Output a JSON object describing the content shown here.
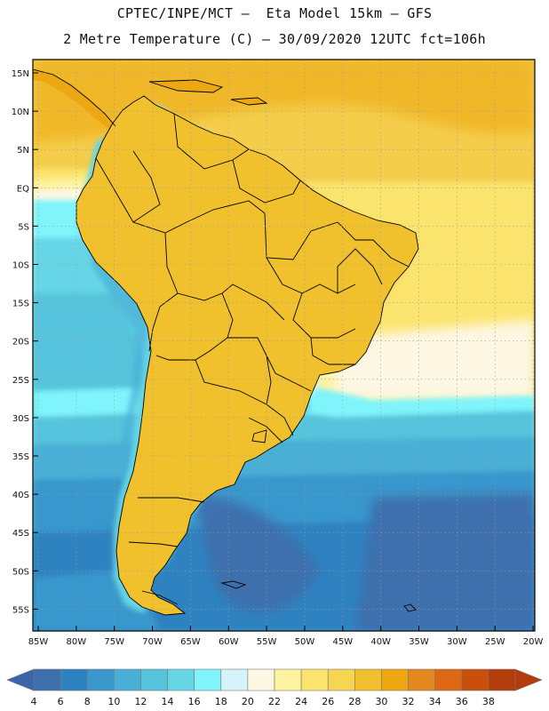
{
  "header": {
    "line1": "CPTEC/INPE/MCT –  Eta Model 15km – GFS",
    "line2": "2 Metre Temperature (C) – 30/09/2020 12UTC fct=106h"
  },
  "map": {
    "region": "South America",
    "lon_range": [
      -86,
      -20
    ],
    "lat_range": [
      -58,
      17
    ],
    "lat_ticks": [
      "15N",
      "10N",
      "5N",
      "EQ",
      "5S",
      "10S",
      "15S",
      "20S",
      "25S",
      "30S",
      "35S",
      "40S",
      "45S",
      "50S",
      "55S"
    ],
    "lon_ticks": [
      "85W",
      "80W",
      "75W",
      "70W",
      "65W",
      "60W",
      "55W",
      "50W",
      "45W",
      "40W",
      "35W",
      "30W",
      "25W",
      "20W"
    ],
    "gridlines": "dotted",
    "boundaries": "country and state borders in black"
  },
  "colorbar": {
    "labels": [
      "4",
      "6",
      "8",
      "10",
      "12",
      "14",
      "16",
      "18",
      "20",
      "22",
      "24",
      "26",
      "28",
      "30",
      "32",
      "34",
      "36",
      "38"
    ],
    "colors": [
      "#3d6fad",
      "#2f82c0",
      "#3997cc",
      "#49afd6",
      "#55c4dc",
      "#66d6e6",
      "#7ff4fb",
      "#d5f3fa",
      "#fdf7e3",
      "#fdf29e",
      "#fbe46e",
      "#f6d552",
      "#f1c12d",
      "#eda711",
      "#e3871f",
      "#de6713",
      "#c94f0b",
      "#b33c0a"
    ],
    "under_color": "#3a65a8",
    "over_color": "#b33c0a"
  }
}
